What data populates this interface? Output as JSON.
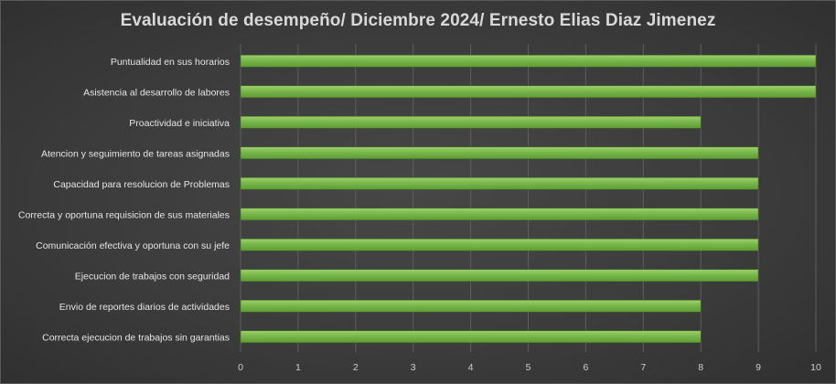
{
  "chart_data": {
    "type": "bar",
    "orientation": "horizontal",
    "title": "Evaluación de desempeño/ Diciembre 2024/ Ernesto Elias Diaz Jimenez",
    "categories": [
      "Puntualidad en sus horarios",
      "Asistencia al desarrollo de labores",
      "Proactividad e iniciativa",
      "Atencion y seguimiento de tareas asignadas",
      "Capacidad para resolucion de Problemas",
      "Correcta y oportuna requisicion de sus materiales",
      "Comunicación  efectiva y oportuna con su jefe",
      "Ejecucion de trabajos con seguridad",
      "Envio de reportes diarios de actividades",
      "Correcta ejecucion de trabajos sin garantias"
    ],
    "values": [
      10,
      10,
      8,
      9,
      9,
      9,
      9,
      9,
      8,
      8
    ],
    "xlim": [
      0,
      10
    ],
    "x_ticks": [
      "0",
      "1",
      "2",
      "3",
      "4",
      "5",
      "6",
      "7",
      "8",
      "9",
      "10"
    ],
    "grid": true,
    "legend": "none",
    "bar_color": "#70ad47",
    "bar_highlight": "#9fd06e"
  }
}
